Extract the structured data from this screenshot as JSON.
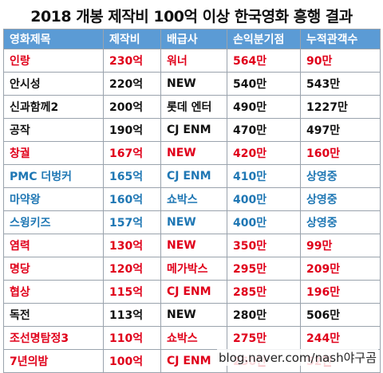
{
  "title": "2018 개봉 제작비 100억 이상 한국영화 흥행 결과",
  "header": [
    "영화제목",
    "제작비",
    "배급사",
    "손익분기점",
    "누적관객수"
  ],
  "rows": [
    {
      "title": "인랑",
      "budget": "230억",
      "distributor": "워너",
      "breakeven": "564만",
      "audience": "90만",
      "color": "red"
    },
    {
      "title": "안시성",
      "budget": "220억",
      "distributor": "NEW",
      "breakeven": "540만",
      "audience": "543만",
      "color": "black"
    },
    {
      "title": "신과함께2",
      "budget": "200억",
      "distributor": "롯데 엔터",
      "breakeven": "490만",
      "audience": "1227만",
      "color": "black"
    },
    {
      "title": "공작",
      "budget": "190억",
      "distributor": "CJ ENM",
      "breakeven": "470만",
      "audience": "497만",
      "color": "black"
    },
    {
      "title": "창궐",
      "budget": "167억",
      "distributor": "NEW",
      "breakeven": "420만",
      "audience": "160만",
      "color": "red"
    },
    {
      "title": "PMC 더벙커",
      "budget": "165억",
      "distributor": "CJ ENM",
      "breakeven": "410만",
      "audience": "상영중",
      "color": "blue"
    },
    {
      "title": "마약왕",
      "budget": "160억",
      "distributor": "쇼박스",
      "breakeven": "400만",
      "audience": "상영중",
      "color": "blue"
    },
    {
      "title": "스윙키즈",
      "budget": "157억",
      "distributor": "NEW",
      "breakeven": "400만",
      "audience": "상영중",
      "color": "blue"
    },
    {
      "title": "염력",
      "budget": "130억",
      "distributor": "NEW",
      "breakeven": "350만",
      "audience": "99만",
      "color": "red"
    },
    {
      "title": "명당",
      "budget": "120억",
      "distributor": "메가박스",
      "breakeven": "295만",
      "audience": "209만",
      "color": "red"
    },
    {
      "title": "협상",
      "budget": "115억",
      "distributor": "CJ ENM",
      "breakeven": "285만",
      "audience": "196만",
      "color": "red"
    },
    {
      "title": "독전",
      "budget": "113억",
      "distributor": "NEW",
      "breakeven": "280만",
      "audience": "506만",
      "color": "black"
    },
    {
      "title": "조선명탐정3",
      "budget": "110억",
      "distributor": "쇼박스",
      "breakeven": "275만",
      "audience": "244만",
      "color": "red"
    },
    {
      "title": "7년의밤",
      "budget": "100억",
      "distributor": "CJ ENM",
      "breakeven": "250만",
      "audience": "52만",
      "color": "red"
    }
  ],
  "watermark": "blog.naver.com/nash야구곰",
  "colors": {
    "header_bg": "#5b9bd5",
    "red": "#e0001a",
    "blue": "#1f77b4",
    "black": "#111111"
  }
}
